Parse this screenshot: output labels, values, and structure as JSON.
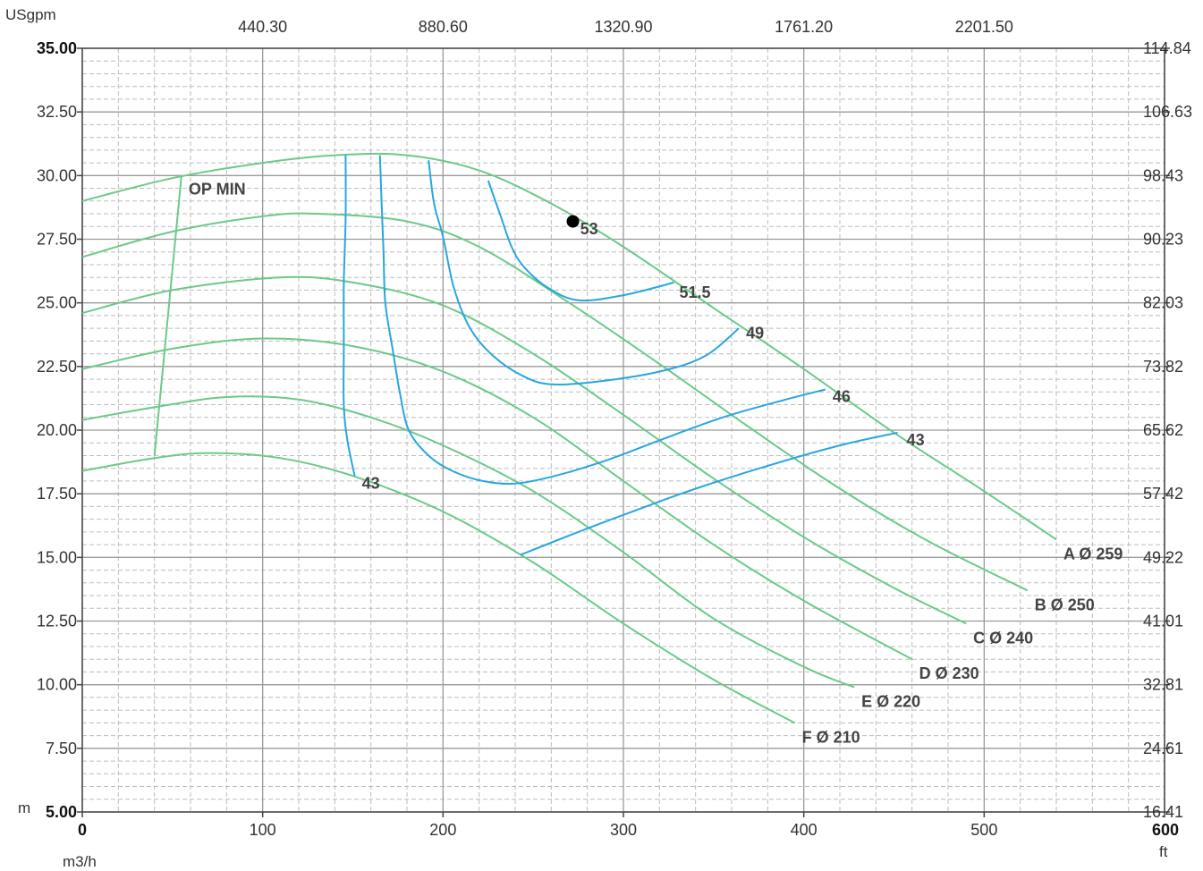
{
  "chart_data": {
    "type": "line",
    "units": {
      "x_bottom": "m3/h",
      "x_top": "USgpm",
      "y_left": "m",
      "y_right": "ft"
    },
    "x_ticks": [
      "0",
      "100",
      "200",
      "300",
      "400",
      "500",
      "600"
    ],
    "x_top_ticks": [
      "440.30",
      "880.60",
      "1320.90",
      "1761.20",
      "2201.50"
    ],
    "y_ticks": [
      "5.00",
      "7.50",
      "10.00",
      "12.50",
      "15.00",
      "17.50",
      "20.00",
      "22.50",
      "25.00",
      "27.50",
      "30.00",
      "32.50",
      "35.00"
    ],
    "y_right_ticks": [
      "16.41",
      "24.61",
      "32.81",
      "41.01",
      "49.22",
      "57.42",
      "65.62",
      "73.82",
      "82.03",
      "90.23",
      "98.43",
      "106.63",
      "114.84"
    ],
    "xlim": [
      0,
      600
    ],
    "ylim": [
      5,
      35
    ],
    "grid": true,
    "pump_curves": [
      {
        "name": "A Ø 259",
        "points": [
          [
            0,
            29.0
          ],
          [
            50,
            29.9
          ],
          [
            100,
            30.5
          ],
          [
            140,
            30.8
          ],
          [
            180,
            30.8
          ],
          [
            220,
            30.2
          ],
          [
            260,
            28.9
          ],
          [
            300,
            27.2
          ],
          [
            350,
            24.8
          ],
          [
            400,
            22.4
          ],
          [
            450,
            19.9
          ],
          [
            500,
            17.6
          ],
          [
            540,
            15.7
          ]
        ]
      },
      {
        "name": "B Ø 250",
        "points": [
          [
            0,
            26.8
          ],
          [
            50,
            27.8
          ],
          [
            100,
            28.4
          ],
          [
            130,
            28.5
          ],
          [
            180,
            28.2
          ],
          [
            220,
            27.2
          ],
          [
            270,
            25.0
          ],
          [
            320,
            22.6
          ],
          [
            370,
            20.1
          ],
          [
            420,
            17.7
          ],
          [
            470,
            15.6
          ],
          [
            524,
            13.7
          ]
        ]
      },
      {
        "name": "C Ø 240",
        "points": [
          [
            0,
            24.6
          ],
          [
            50,
            25.5
          ],
          [
            110,
            26.0
          ],
          [
            150,
            25.8
          ],
          [
            200,
            24.9
          ],
          [
            250,
            23.0
          ],
          [
            300,
            20.6
          ],
          [
            350,
            18.1
          ],
          [
            400,
            15.8
          ],
          [
            450,
            13.8
          ],
          [
            490,
            12.4
          ]
        ]
      },
      {
        "name": "D Ø 230",
        "points": [
          [
            0,
            22.4
          ],
          [
            50,
            23.2
          ],
          [
            100,
            23.6
          ],
          [
            150,
            23.3
          ],
          [
            200,
            22.3
          ],
          [
            250,
            20.5
          ],
          [
            300,
            18.0
          ],
          [
            350,
            15.5
          ],
          [
            400,
            13.3
          ],
          [
            460,
            11.0
          ]
        ]
      },
      {
        "name": "E Ø 220",
        "points": [
          [
            0,
            20.4
          ],
          [
            40,
            20.9
          ],
          [
            80,
            21.3
          ],
          [
            120,
            21.2
          ],
          [
            160,
            20.5
          ],
          [
            200,
            19.4
          ],
          [
            250,
            17.6
          ],
          [
            300,
            15.2
          ],
          [
            350,
            12.6
          ],
          [
            400,
            10.7
          ],
          [
            428,
            9.9
          ]
        ]
      },
      {
        "name": "F Ø 210",
        "points": [
          [
            0,
            18.4
          ],
          [
            40,
            18.9
          ],
          [
            70,
            19.1
          ],
          [
            110,
            18.9
          ],
          [
            150,
            18.2
          ],
          [
            200,
            16.8
          ],
          [
            250,
            14.8
          ],
          [
            300,
            12.4
          ],
          [
            350,
            10.2
          ],
          [
            395,
            8.5
          ]
        ]
      }
    ],
    "min_flow_line": {
      "label": "OP MIN",
      "points": [
        [
          55,
          30.0
        ],
        [
          40,
          19.0
        ]
      ]
    },
    "efficiency_curves": [
      {
        "name": "53",
        "points": [
          [
            225,
            29.8
          ],
          [
            232,
            28.4
          ],
          [
            238,
            27.2
          ],
          [
            245,
            26.4
          ],
          [
            258,
            25.6
          ],
          [
            275,
            25.1
          ],
          [
            300,
            25.3
          ],
          [
            328,
            25.8
          ]
        ]
      },
      {
        "name": "49",
        "points": [
          [
            192,
            30.6
          ],
          [
            195,
            28.9
          ],
          [
            200,
            27.6
          ],
          [
            206,
            25.6
          ],
          [
            215,
            24.0
          ],
          [
            228,
            22.9
          ],
          [
            245,
            22.1
          ],
          [
            260,
            21.8
          ],
          [
            285,
            21.9
          ],
          [
            320,
            22.3
          ],
          [
            345,
            22.9
          ],
          [
            364,
            24.0
          ]
        ]
      },
      {
        "name": "46",
        "points": [
          [
            165,
            30.8
          ],
          [
            166,
            28.8
          ],
          [
            167,
            27.0
          ],
          [
            168,
            25.0
          ],
          [
            172,
            23.2
          ],
          [
            176,
            21.5
          ],
          [
            181,
            20.0
          ],
          [
            192,
            19.0
          ],
          [
            205,
            18.4
          ],
          [
            222,
            18.0
          ],
          [
            240,
            17.9
          ],
          [
            262,
            18.2
          ],
          [
            290,
            18.8
          ],
          [
            320,
            19.6
          ],
          [
            355,
            20.5
          ],
          [
            390,
            21.2
          ],
          [
            412,
            21.6
          ]
        ]
      },
      {
        "name": "43",
        "points": [
          [
            146,
            30.8
          ],
          [
            146,
            28.3
          ],
          [
            145,
            25.8
          ],
          [
            145,
            23.3
          ],
          [
            145,
            21.0
          ],
          [
            147,
            19.6
          ],
          [
            151,
            18.2
          ]
        ]
      },
      {
        "name": "43",
        "points": [
          [
            243,
            15.1
          ],
          [
            275,
            16.0
          ],
          [
            305,
            16.8
          ],
          [
            340,
            17.7
          ],
          [
            380,
            18.6
          ],
          [
            420,
            19.4
          ],
          [
            452,
            19.9
          ]
        ]
      }
    ],
    "annotations": [
      "OP MIN",
      "53",
      "51.5",
      "49",
      "46",
      "43",
      "43"
    ],
    "operating_point": {
      "x": 272,
      "y": 28.2
    }
  }
}
